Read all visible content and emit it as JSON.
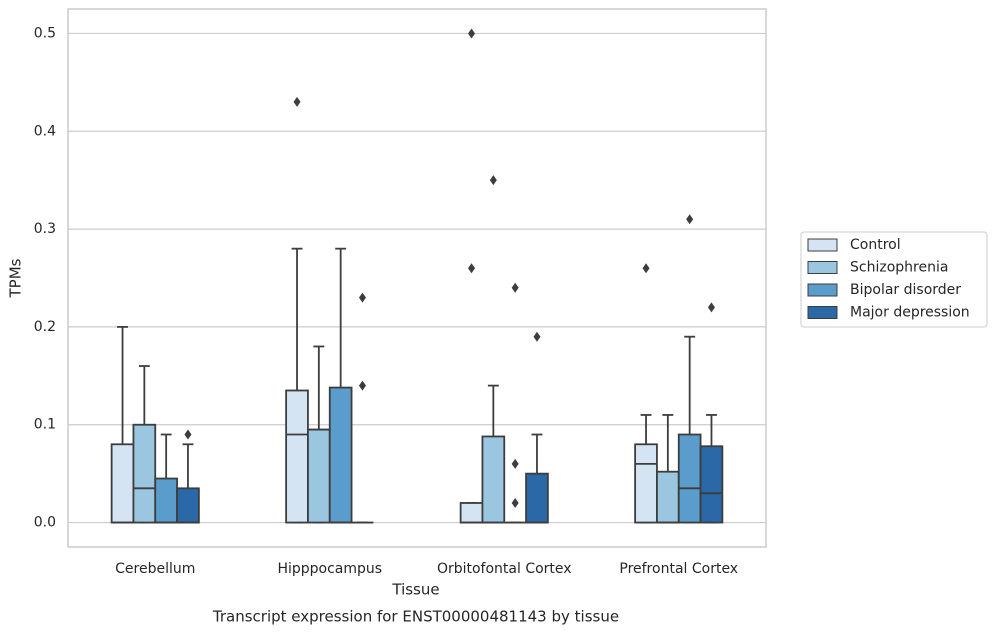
{
  "chart_data": {
    "type": "box",
    "title": "Transcript expression for ENST00000481143 by tissue",
    "x_label": "Tissue",
    "y_label": "TPMs",
    "categories": [
      "Cerebellum",
      "Hipppocampus",
      "Orbitofontal Cortex",
      "Prefrontal Cortex"
    ],
    "ylim": [
      -0.025,
      0.525
    ],
    "yticks": [
      {
        "value": 0,
        "label": "0.0"
      },
      0.1,
      0.2,
      0.3,
      0.4,
      0.5
    ],
    "grid": true,
    "legend": "right",
    "series": [
      {
        "name": "Control",
        "color": "#d4e4f2",
        "values": [
          {
            "whislo": 0,
            "q1": 0,
            "med": 0,
            "q3": 0.08,
            "whishi": 0.2,
            "fliers": []
          },
          {
            "whislo": 0,
            "q1": 0,
            "med": 0.09,
            "q3": 0.135,
            "whishi": 0.28,
            "fliers": [
              0.43
            ]
          },
          {
            "whislo": 0,
            "q1": 0,
            "med": 0,
            "q3": 0.02,
            "whishi": 0.02,
            "fliers": [
              0.5,
              0.26
            ]
          },
          {
            "whislo": 0,
            "q1": 0,
            "med": 0.06,
            "q3": 0.08,
            "whishi": 0.11,
            "fliers": [
              0.26
            ]
          }
        ]
      },
      {
        "name": "Schizophrenia",
        "color": "#9ac6df",
        "values": [
          {
            "whislo": 0,
            "q1": 0,
            "med": 0.035,
            "q3": 0.1,
            "whishi": 0.16,
            "fliers": []
          },
          {
            "whislo": 0,
            "q1": 0,
            "med": 0.095,
            "q3": 0.095,
            "whishi": 0.18,
            "fliers": []
          },
          {
            "whislo": 0,
            "q1": 0,
            "med": 0,
            "q3": 0.088,
            "whishi": 0.14,
            "fliers": [
              0.35
            ]
          },
          {
            "whislo": 0,
            "q1": 0,
            "med": 0,
            "q3": 0.052,
            "whishi": 0.11,
            "fliers": []
          }
        ]
      },
      {
        "name": "Bipolar disorder",
        "color": "#5a9ccb",
        "values": [
          {
            "whislo": 0,
            "q1": 0,
            "med": 0,
            "q3": 0.045,
            "whishi": 0.09,
            "fliers": []
          },
          {
            "whislo": 0,
            "q1": 0,
            "med": 0,
            "q3": 0.138,
            "whishi": 0.28,
            "fliers": []
          },
          {
            "whislo": 0,
            "q1": 0,
            "med": 0,
            "q3": 0,
            "whishi": 0,
            "fliers": [
              0.24,
              0.06,
              0.02
            ]
          },
          {
            "whislo": 0,
            "q1": 0,
            "med": 0.035,
            "q3": 0.09,
            "whishi": 0.19,
            "fliers": [
              0.31
            ]
          }
        ]
      },
      {
        "name": "Major depression",
        "color": "#2a68a8",
        "values": [
          {
            "whislo": 0,
            "q1": 0,
            "med": 0,
            "q3": 0.035,
            "whishi": 0.08,
            "fliers": [
              0.09
            ]
          },
          {
            "whislo": 0,
            "q1": 0,
            "med": 0,
            "q3": 0,
            "whishi": 0,
            "fliers": [
              0.23,
              0.14
            ]
          },
          {
            "whislo": 0,
            "q1": 0,
            "med": 0,
            "q3": 0.05,
            "whishi": 0.09,
            "fliers": [
              0.19
            ]
          },
          {
            "whislo": 0,
            "q1": 0,
            "med": 0.03,
            "q3": 0.078,
            "whishi": 0.11,
            "fliers": [
              0.22
            ]
          }
        ]
      }
    ]
  }
}
